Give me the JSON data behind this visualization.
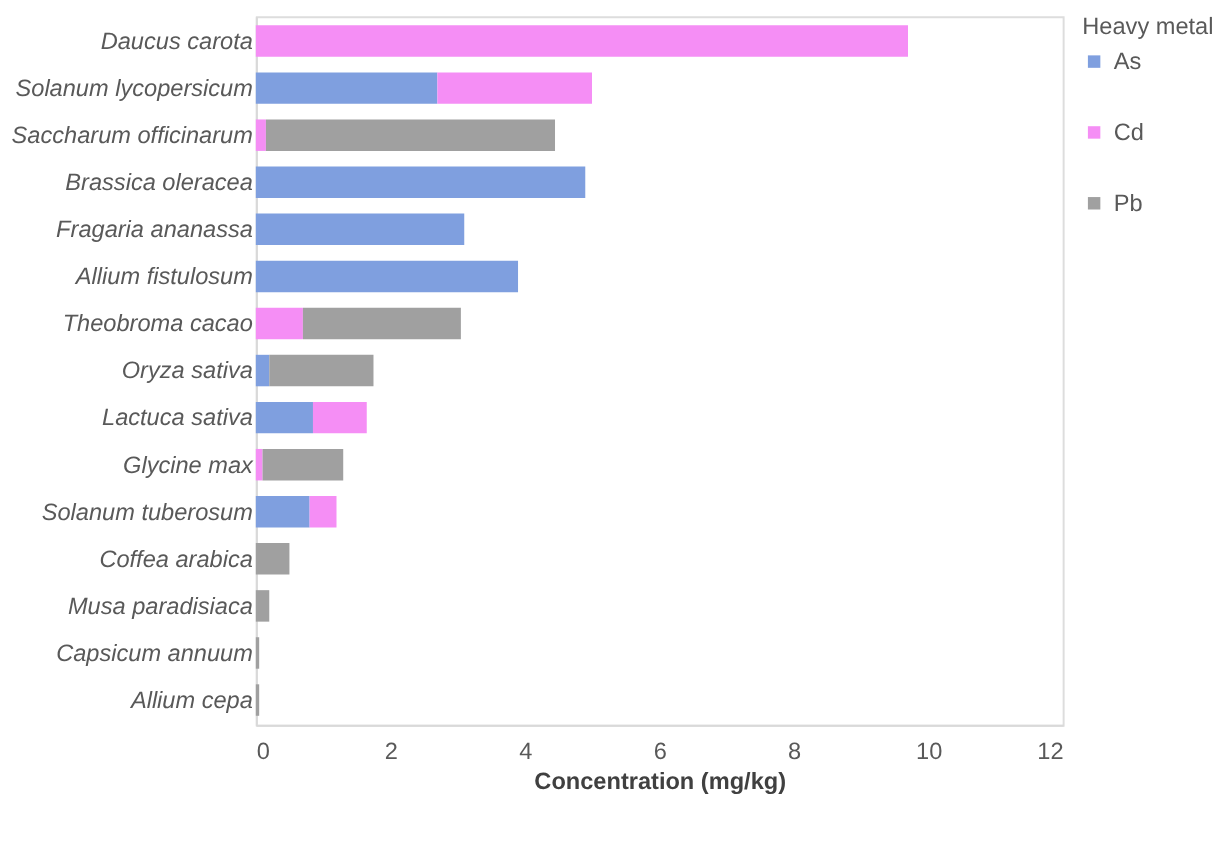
{
  "chart_data": {
    "type": "bar",
    "orientation": "horizontal",
    "stacked": true,
    "categories": [
      "Daucus carota",
      "Solanum lycopersicum",
      "Saccharum officinarum",
      "Brassica oleracea",
      "Fragaria ananassa",
      "Allium fistulosum",
      "Theobroma cacao",
      "Oryza sativa",
      "Lactuca sativa",
      "Glycine max",
      "Solanum tuberosum",
      "Coffea arabica",
      "Musa paradisiaca",
      "Capsicum annuum",
      "Allium cepa"
    ],
    "series": [
      {
        "name": "As",
        "color": "#7f9fdf",
        "values": [
          0,
          2.7,
          0,
          4.9,
          3.1,
          3.9,
          0,
          0.2,
          0.85,
          0,
          0.8,
          0,
          0,
          0,
          0
        ]
      },
      {
        "name": "Cd",
        "color": "#f58ef5",
        "values": [
          9.7,
          2.3,
          0.15,
          0,
          0,
          0,
          0.7,
          0,
          0.8,
          0.1,
          0.4,
          0,
          0,
          0,
          0
        ]
      },
      {
        "name": "Pb",
        "color": "#a0a0a0",
        "values": [
          0,
          0,
          4.3,
          0,
          0,
          0,
          2.35,
          1.55,
          0,
          1.2,
          0,
          0.5,
          0.2,
          0.05,
          0.05
        ]
      }
    ],
    "xlabel": "Concentration (mg/kg)",
    "legend_title": "Heavy metal",
    "legend": "right",
    "xlim": [
      0,
      12
    ],
    "xticks": [
      0,
      2,
      4,
      6,
      8,
      10,
      12
    ],
    "grid": false
  }
}
